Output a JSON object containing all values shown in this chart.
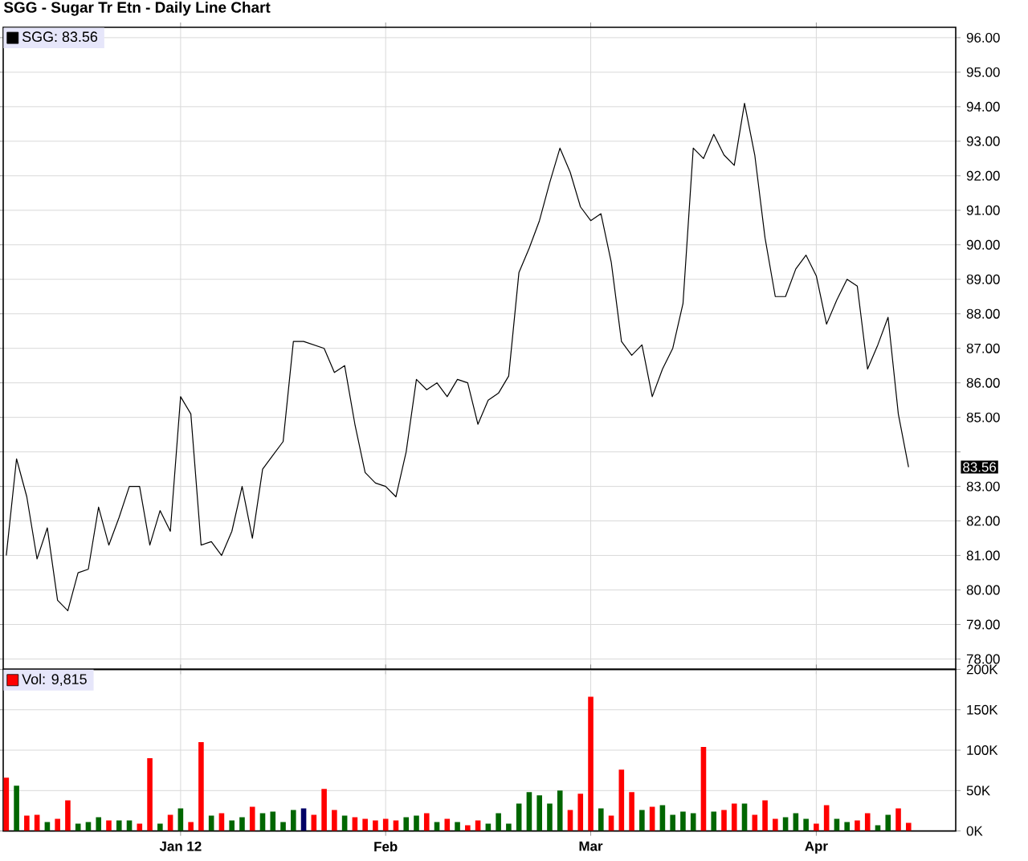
{
  "chart_data": [
    {
      "type": "line",
      "title": "SGG - Sugar Tr Etn - Daily Line Chart",
      "categories": [
        null,
        null,
        null,
        null,
        null,
        null,
        null,
        null,
        null,
        null,
        null,
        null,
        null,
        null,
        null,
        null,
        null,
        null,
        null,
        null,
        null,
        null,
        null,
        null,
        null,
        null,
        null,
        null,
        null,
        null,
        null,
        null,
        null,
        null,
        null,
        null,
        null,
        null,
        null,
        null,
        null,
        null,
        null,
        null,
        null,
        null,
        null,
        null,
        null,
        null,
        null,
        null,
        null,
        null,
        null,
        null,
        null,
        null,
        null,
        null,
        null,
        null,
        null,
        null,
        null,
        null,
        null,
        null,
        null,
        null,
        null,
        null,
        null,
        null,
        null,
        null,
        null,
        null,
        null,
        null,
        null,
        null,
        null,
        null,
        null,
        null,
        null,
        null,
        null
      ],
      "series": [
        {
          "name": "SGG: 83.56",
          "color": "#000000",
          "values": [
            81.0,
            83.8,
            82.7,
            80.9,
            81.8,
            79.7,
            79.4,
            80.5,
            80.6,
            82.4,
            81.3,
            82.1,
            83.0,
            83.0,
            81.3,
            82.3,
            81.7,
            85.6,
            85.1,
            81.3,
            81.4,
            81.0,
            81.7,
            83.0,
            81.5,
            83.5,
            83.9,
            84.3,
            87.2,
            87.2,
            87.1,
            87.0,
            86.3,
            86.5,
            84.8,
            83.4,
            83.1,
            83.0,
            82.7,
            84.0,
            86.1,
            85.8,
            86.0,
            85.6,
            86.1,
            86.0,
            84.8,
            85.5,
            85.7,
            86.2,
            89.2,
            89.9,
            90.7,
            91.8,
            92.8,
            92.1,
            91.1,
            90.7,
            90.9,
            89.5,
            87.2,
            86.8,
            87.1,
            85.6,
            86.4,
            87.0,
            88.3,
            92.8,
            92.5,
            93.2,
            92.6,
            92.3,
            94.1,
            92.6,
            90.2,
            88.5,
            88.5,
            89.3,
            89.7,
            89.1,
            87.7,
            88.4,
            89.0,
            88.8,
            86.4,
            87.1,
            87.9,
            85.1,
            83.56
          ]
        }
      ],
      "ylim": [
        77.7,
        96.3
      ],
      "yticks": [
        {
          "value": 78,
          "label": "78.00"
        },
        {
          "value": 79,
          "label": "79.00"
        },
        {
          "value": 80,
          "label": "80.00"
        },
        {
          "value": 81,
          "label": "81.00"
        },
        {
          "value": 82,
          "label": "82.00"
        },
        {
          "value": 83,
          "label": "83.00"
        },
        {
          "value": 84,
          "label": null
        },
        {
          "value": 85,
          "label": "85.00"
        },
        {
          "value": 86,
          "label": "86.00"
        },
        {
          "value": 87,
          "label": "87.00"
        },
        {
          "value": 88,
          "label": "88.00"
        },
        {
          "value": 89,
          "label": "89.00"
        },
        {
          "value": 90,
          "label": "90.00"
        },
        {
          "value": 91,
          "label": "91.00"
        },
        {
          "value": 92,
          "label": "92.00"
        },
        {
          "value": 93,
          "label": "93.00"
        },
        {
          "value": 94,
          "label": "94.00"
        },
        {
          "value": 95,
          "label": "95.00"
        },
        {
          "value": 96,
          "label": "96.00"
        }
      ],
      "annotations": [
        "83.56"
      ],
      "tick_labels": "y",
      "grid": true,
      "legend": "top left",
      "marker": "none",
      "line_style": "solid"
    },
    {
      "type": "bar",
      "categories": [
        null,
        null,
        null,
        null,
        null,
        null,
        null,
        null,
        null,
        null,
        null,
        null,
        null,
        null,
        null,
        null,
        null,
        "Jan 12",
        null,
        null,
        null,
        null,
        null,
        null,
        null,
        null,
        null,
        null,
        null,
        null,
        null,
        null,
        null,
        null,
        null,
        null,
        null,
        "Feb",
        null,
        null,
        null,
        null,
        null,
        null,
        null,
        null,
        null,
        null,
        null,
        null,
        null,
        null,
        null,
        null,
        null,
        null,
        null,
        "Mar",
        null,
        null,
        null,
        null,
        null,
        null,
        null,
        null,
        null,
        null,
        null,
        null,
        null,
        null,
        null,
        null,
        null,
        null,
        null,
        null,
        null,
        "Apr",
        null,
        null,
        null,
        null,
        null,
        null,
        null,
        null,
        null
      ],
      "series": [
        {
          "name": "Vol: 9,815",
          "color": "#ff0000",
          "values": [
            66,
            56,
            19,
            20,
            11,
            15,
            38,
            9,
            11,
            17,
            13,
            13,
            13,
            9,
            90,
            9,
            20,
            28,
            11,
            110,
            19,
            22,
            13,
            17,
            30,
            22,
            24,
            11,
            26,
            28,
            20,
            52,
            26,
            19,
            17,
            15,
            13,
            15,
            13,
            17,
            19,
            22,
            11,
            15,
            11,
            7,
            13,
            9,
            22,
            9,
            34,
            48,
            44,
            34,
            50,
            26,
            46,
            166,
            28,
            19,
            76,
            48,
            26,
            30,
            32,
            20,
            24,
            22,
            104,
            24,
            26,
            34,
            34,
            20,
            38,
            15,
            17,
            22,
            15,
            9,
            32,
            15,
            11,
            13,
            22,
            7,
            20,
            28,
            10
          ],
          "colors": [
            "#ff0000",
            "#006600",
            "#ff0000",
            "#ff0000",
            "#006600",
            "#ff0000",
            "#ff0000",
            "#006600",
            "#006600",
            "#006600",
            "#ff0000",
            "#006600",
            "#006600",
            "#ff0000",
            "#ff0000",
            "#006600",
            "#ff0000",
            "#006600",
            "#ff0000",
            "#ff0000",
            "#006600",
            "#ff0000",
            "#006600",
            "#006600",
            "#ff0000",
            "#006600",
            "#006600",
            "#006600",
            "#006600",
            "#000066",
            "#ff0000",
            "#ff0000",
            "#ff0000",
            "#006600",
            "#ff0000",
            "#ff0000",
            "#ff0000",
            "#ff0000",
            "#ff0000",
            "#006600",
            "#006600",
            "#ff0000",
            "#006600",
            "#ff0000",
            "#006600",
            "#ff0000",
            "#ff0000",
            "#006600",
            "#006600",
            "#006600",
            "#006600",
            "#006600",
            "#006600",
            "#006600",
            "#006600",
            "#ff0000",
            "#ff0000",
            "#ff0000",
            "#006600",
            "#ff0000",
            "#ff0000",
            "#ff0000",
            "#006600",
            "#ff0000",
            "#006600",
            "#006600",
            "#006600",
            "#006600",
            "#ff0000",
            "#006600",
            "#ff0000",
            "#ff0000",
            "#006600",
            "#ff0000",
            "#ff0000",
            "#ff0000",
            "#006600",
            "#006600",
            "#006600",
            "#ff0000",
            "#ff0000",
            "#006600",
            "#006600",
            "#ff0000",
            "#ff0000",
            "#006600",
            "#006600",
            "#ff0000",
            "#ff0000"
          ]
        }
      ],
      "ylim": [
        0,
        200
      ],
      "yticks": [
        {
          "value": 0,
          "label": "0K"
        },
        {
          "value": 50,
          "label": "50K"
        },
        {
          "value": 100,
          "label": "100K"
        },
        {
          "value": 150,
          "label": "150K"
        },
        {
          "value": 200,
          "label": "200K"
        }
      ],
      "grid": true,
      "legend": "top left"
    }
  ]
}
